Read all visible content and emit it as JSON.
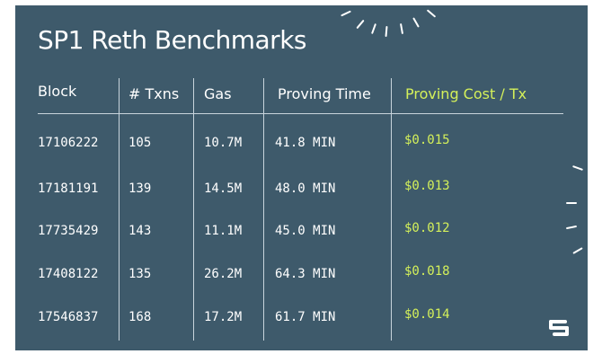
{
  "slide": {
    "title": "SP1 Reth Benchmarks",
    "columns": [
      "Block",
      "# Txns",
      "Gas",
      "Proving Time",
      "Proving Cost / Tx"
    ],
    "rows": [
      {
        "block": "17106222",
        "txns": "105",
        "gas": "10.7M",
        "time": "41.8 MIN",
        "cost": "$0.015"
      },
      {
        "block": "17181191",
        "txns": "139",
        "gas": "14.5M",
        "time": "48.0 MIN",
        "cost": "$0.013"
      },
      {
        "block": "17735429",
        "txns": "143",
        "gas": "11.1M",
        "time": "45.0 MIN",
        "cost": "$0.012"
      },
      {
        "block": "17408122",
        "txns": "135",
        "gas": "26.2M",
        "time": "64.3 MIN",
        "cost": "$0.018"
      },
      {
        "block": "17546837",
        "txns": "168",
        "gas": "17.2M",
        "time": "61.7 MIN",
        "cost": "$0.014"
      }
    ],
    "logo_icon": "sp1-logo-icon",
    "accent_color": "#d4f05a",
    "background_color": "#3e5a6b"
  }
}
